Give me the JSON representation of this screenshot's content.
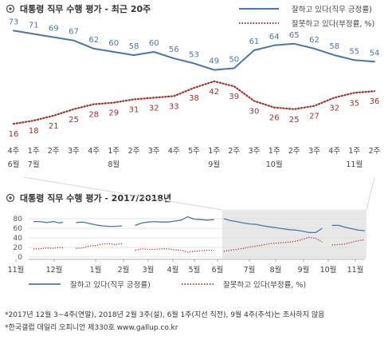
{
  "chart_data": [
    {
      "type": "line",
      "title": "대통령 직무 수행 평가 - 최근 20주",
      "categories": [
        [
          "4주",
          "6월"
        ],
        [
          "1주",
          "7월"
        ],
        [
          "2주",
          ""
        ],
        [
          "3주",
          ""
        ],
        [
          "4주",
          ""
        ],
        [
          "1주",
          "8월"
        ],
        [
          "2주",
          ""
        ],
        [
          "3주",
          ""
        ],
        [
          "4주",
          ""
        ],
        [
          "5주",
          ""
        ],
        [
          "1주",
          "9월"
        ],
        [
          "2주",
          ""
        ],
        [
          "3주",
          ""
        ],
        [
          "1주",
          "10월"
        ],
        [
          "2주",
          ""
        ],
        [
          "3주",
          ""
        ],
        [
          "4주",
          ""
        ],
        [
          "1주",
          "11월"
        ],
        [
          "2주",
          ""
        ]
      ],
      "series": [
        {
          "name": "잘하고 있다(직무 긍정률)",
          "color": "#4a76a8",
          "style": "solid",
          "values": [
            73,
            71,
            69,
            67,
            62,
            60,
            58,
            60,
            56,
            53,
            49,
            50,
            61,
            64,
            65,
            62,
            58,
            55,
            54
          ]
        },
        {
          "name": "잘못하고 있다(부정률, %)",
          "color": "#a0322e",
          "style": "dotted",
          "values": [
            16,
            18,
            21,
            25,
            28,
            29,
            31,
            32,
            33,
            38,
            42,
            39,
            30,
            26,
            25,
            27,
            32,
            35,
            36
          ]
        }
      ],
      "legend": "top-right",
      "ylim": [
        0,
        100
      ]
    },
    {
      "type": "line",
      "title": "대통령 직무 수행 평가 - 2017/2018년",
      "yticks": [
        0,
        20,
        40,
        60,
        80
      ],
      "ylim": [
        0,
        90
      ],
      "xticks": [
        "11월",
        "12월",
        "1월",
        "2월",
        "3월",
        "4월",
        "5월",
        "6월",
        "7월",
        "8월",
        "9월",
        "10월",
        "11월"
      ],
      "series": [
        {
          "name": "잘하고 있다(직무 긍정률)",
          "color": "#4a76a8",
          "style": "solid",
          "segments": [
            [
              [
                0,
                74
              ],
              [
                2,
                74
              ],
              [
                4,
                72
              ],
              [
                6,
                74
              ],
              [
                8,
                71
              ],
              [
                9,
                73
              ]
            ],
            [
              [
                13,
                72
              ],
              [
                15,
                73
              ],
              [
                17,
                70
              ],
              [
                19,
                67
              ],
              [
                21,
                65
              ],
              [
                23,
                64
              ],
              [
                25,
                64
              ],
              [
                27,
                65
              ]
            ],
            [
              [
                31,
                66
              ],
              [
                33,
                71
              ],
              [
                35,
                73
              ],
              [
                37,
                74
              ],
              [
                39,
                73
              ],
              [
                41,
                73
              ],
              [
                43,
                75
              ],
              [
                45,
                77
              ],
              [
                47,
                84
              ],
              [
                49,
                79
              ],
              [
                51,
                78
              ],
              [
                53,
                77
              ],
              [
                55,
                78
              ]
            ],
            [
              [
                58,
                80
              ],
              [
                60,
                76
              ],
              [
                62,
                74
              ],
              [
                64,
                71
              ],
              [
                66,
                69
              ],
              [
                68,
                68
              ],
              [
                70,
                65
              ],
              [
                72,
                63
              ],
              [
                74,
                61
              ],
              [
                76,
                59
              ],
              [
                78,
                57
              ],
              [
                80,
                56
              ],
              [
                82,
                54
              ],
              [
                84,
                51
              ],
              [
                86,
                51
              ],
              [
                88,
                60
              ]
            ],
            [
              [
                91,
                66
              ],
              [
                93,
                66
              ],
              [
                95,
                62
              ],
              [
                97,
                59
              ],
              [
                99,
                56
              ],
              [
                101,
                55
              ]
            ]
          ]
        },
        {
          "name": "잘못하고 있다(부정률, %)",
          "color": "#a0322e",
          "style": "dotted",
          "segments": [
            [
              [
                0,
                17
              ],
              [
                2,
                17
              ],
              [
                4,
                19
              ],
              [
                6,
                18
              ],
              [
                8,
                20
              ],
              [
                9,
                19
              ]
            ],
            [
              [
                13,
                18
              ],
              [
                15,
                19
              ],
              [
                17,
                23
              ],
              [
                19,
                24
              ],
              [
                21,
                27
              ],
              [
                23,
                28
              ],
              [
                25,
                26
              ],
              [
                27,
                28
              ]
            ],
            [
              [
                31,
                14
              ],
              [
                33,
                17
              ],
              [
                35,
                16
              ],
              [
                37,
                16
              ],
              [
                39,
                17
              ],
              [
                41,
                17
              ],
              [
                43,
                15
              ],
              [
                45,
                14
              ],
              [
                47,
                10
              ],
              [
                49,
                12
              ],
              [
                51,
                13
              ],
              [
                53,
                14
              ],
              [
                55,
                14
              ]
            ],
            [
              [
                58,
                12
              ],
              [
                60,
                14
              ],
              [
                62,
                16
              ],
              [
                64,
                18
              ],
              [
                66,
                21
              ],
              [
                68,
                23
              ],
              [
                70,
                25
              ],
              [
                72,
                28
              ],
              [
                74,
                29
              ],
              [
                76,
                30
              ],
              [
                78,
                31
              ],
              [
                80,
                33
              ],
              [
                82,
                37
              ],
              [
                84,
                41
              ],
              [
                86,
                39
              ],
              [
                88,
                31
              ]
            ],
            [
              [
                91,
                25
              ],
              [
                93,
                26
              ],
              [
                95,
                27
              ],
              [
                97,
                31
              ],
              [
                99,
                34
              ],
              [
                101,
                36
              ]
            ]
          ]
        }
      ],
      "highlight_window": "last 20 weeks (shaded)",
      "legend": "bottom"
    }
  ],
  "labels": {
    "title1": "대통령 직무 수행 평가 - 최근 20주",
    "title2": "대통령 직무 수행 평가 - 2017/2018년",
    "legend_pos": "잘하고 있다(직무 긍정률)",
    "legend_neg": "잘못하고 있다(부정률, %)",
    "footnote1": "*2017년 12월 3~4주(연말), 2018년 2월 3주(설), 6월 1주(지선 직전), 9월 4주(추석)는 조사하지 않음",
    "footnote2": "*한국갤럽 데일리 오피니언 제330호 www.gallup.co.kr"
  },
  "icons": {
    "title_bullet": "target-circle-icon"
  }
}
